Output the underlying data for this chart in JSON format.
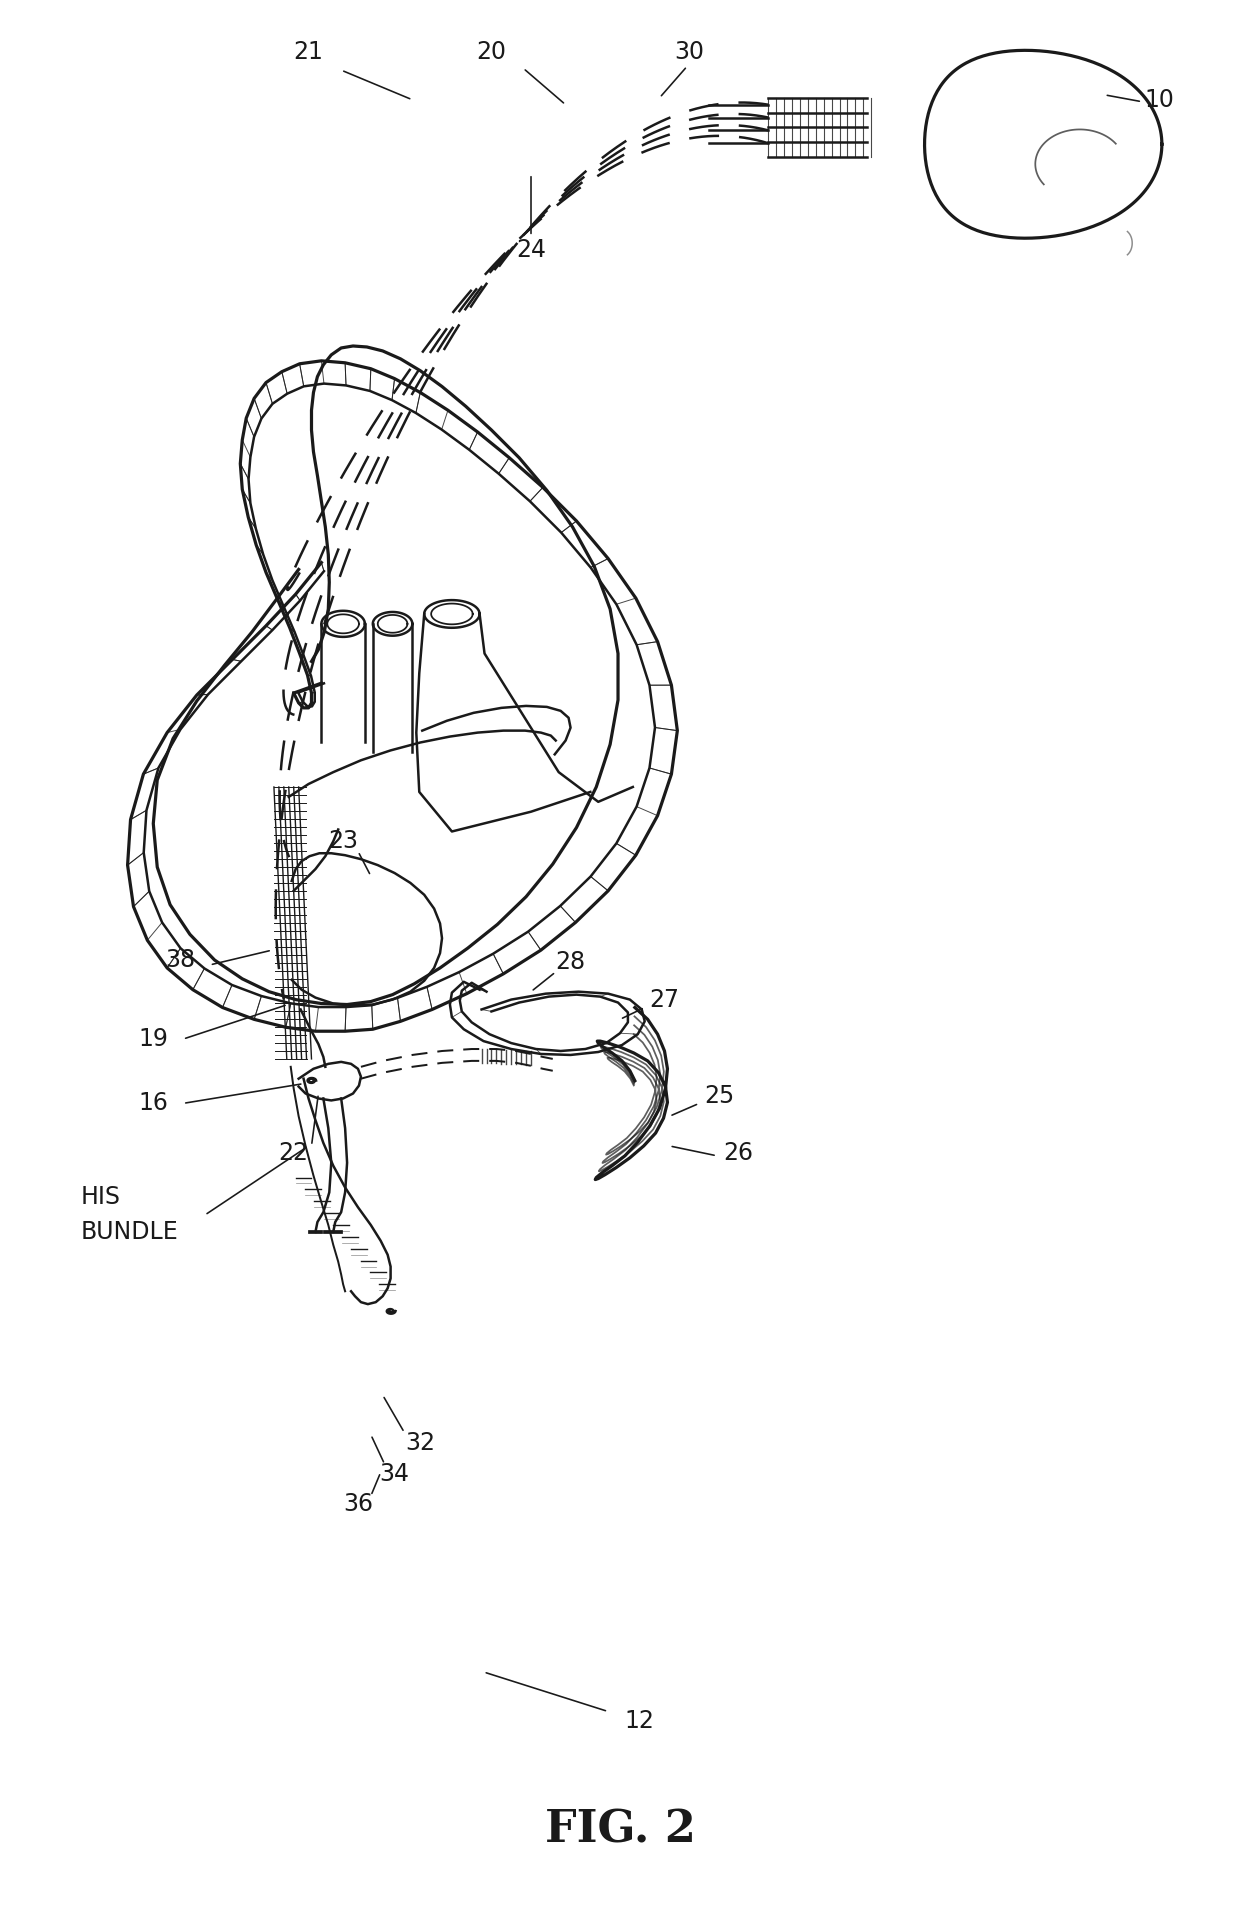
{
  "background_color": "#ffffff",
  "line_color": "#1a1a1a",
  "line_width": 1.8,
  "label_fontsize": 17,
  "figure_label_fontsize": 32,
  "figure_label_style": "bold",
  "title_text": "FIG. 2",
  "figsize": [
    12.4,
    19.25
  ],
  "dpi": 100
}
